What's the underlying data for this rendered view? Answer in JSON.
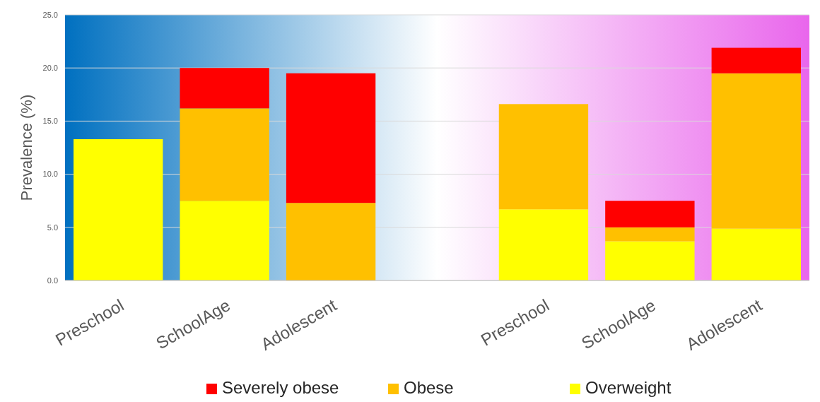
{
  "chart_data": {
    "type": "bar",
    "stacked": true,
    "ylabel": "Prevalence (%)",
    "categories": [
      "Preschool",
      "SchoolAge",
      "Adolescent",
      null,
      "Preschool",
      "SchoolAge",
      "Adolescent"
    ],
    "series": [
      {
        "name": "Overweight",
        "color": "#ffff00",
        "values": [
          13.3,
          7.5,
          0,
          null,
          6.7,
          3.7,
          4.9
        ]
      },
      {
        "name": "Obese",
        "color": "#ffc000",
        "values": [
          0,
          8.7,
          7.3,
          null,
          9.9,
          1.3,
          14.6
        ]
      },
      {
        "name": "Severely obese",
        "color": "#ff0000",
        "values": [
          0,
          3.8,
          12.2,
          null,
          0,
          2.5,
          2.4
        ]
      }
    ],
    "ylim": [
      0,
      25
    ],
    "yticks": [
      {
        "value": 0,
        "label": "0.0"
      },
      {
        "value": 5,
        "label": "5.0"
      },
      {
        "value": 10,
        "label": "10.0"
      },
      {
        "value": 15,
        "label": "15.0"
      },
      {
        "value": 20,
        "label": "20.0"
      },
      {
        "value": 25,
        "label": "25.0"
      }
    ],
    "grid": "y",
    "legend": "bottom"
  }
}
